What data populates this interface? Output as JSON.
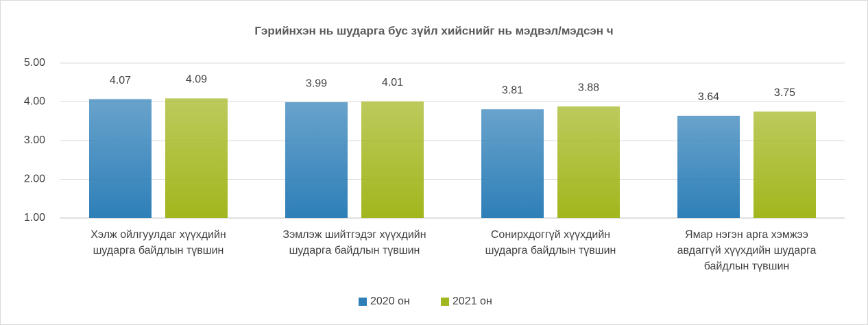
{
  "chart_data": {
    "type": "bar",
    "title": "Гэрийнхэн нь шударга бус зүйл хийснийг нь мэдвэл/мэдсэн ч",
    "categories": [
      "Хэлж ойлгуулдаг хүүхдийн\nшударга байдлын түвшин",
      "Зэмлэж шийтгэдэг хүүхдийн\nшударга байдлын түвшин",
      "Сонирхдоггүй хүүхдийн\nшударга байдлын түвшин",
      "Ямар нэгэн арга хэмжээ\nавдаггүй хүүхдийн шударга\nбайдлын түвшин"
    ],
    "series": [
      {
        "name": "2020 он",
        "color": "#2e7fb8",
        "values": [
          4.07,
          3.99,
          3.81,
          3.64
        ]
      },
      {
        "name": "2021 он",
        "color": "#a2b61d",
        "values": [
          4.09,
          4.01,
          3.88,
          3.75
        ]
      }
    ],
    "ylim": [
      1,
      5
    ],
    "yticks": [
      {
        "value": 1,
        "label": "1.00"
      },
      {
        "value": 2,
        "label": "2.00"
      },
      {
        "value": 3,
        "label": "3.00"
      },
      {
        "value": 4,
        "label": "4.00"
      },
      {
        "value": 5,
        "label": "5.00"
      }
    ],
    "grid": true,
    "legend": "bottom"
  }
}
